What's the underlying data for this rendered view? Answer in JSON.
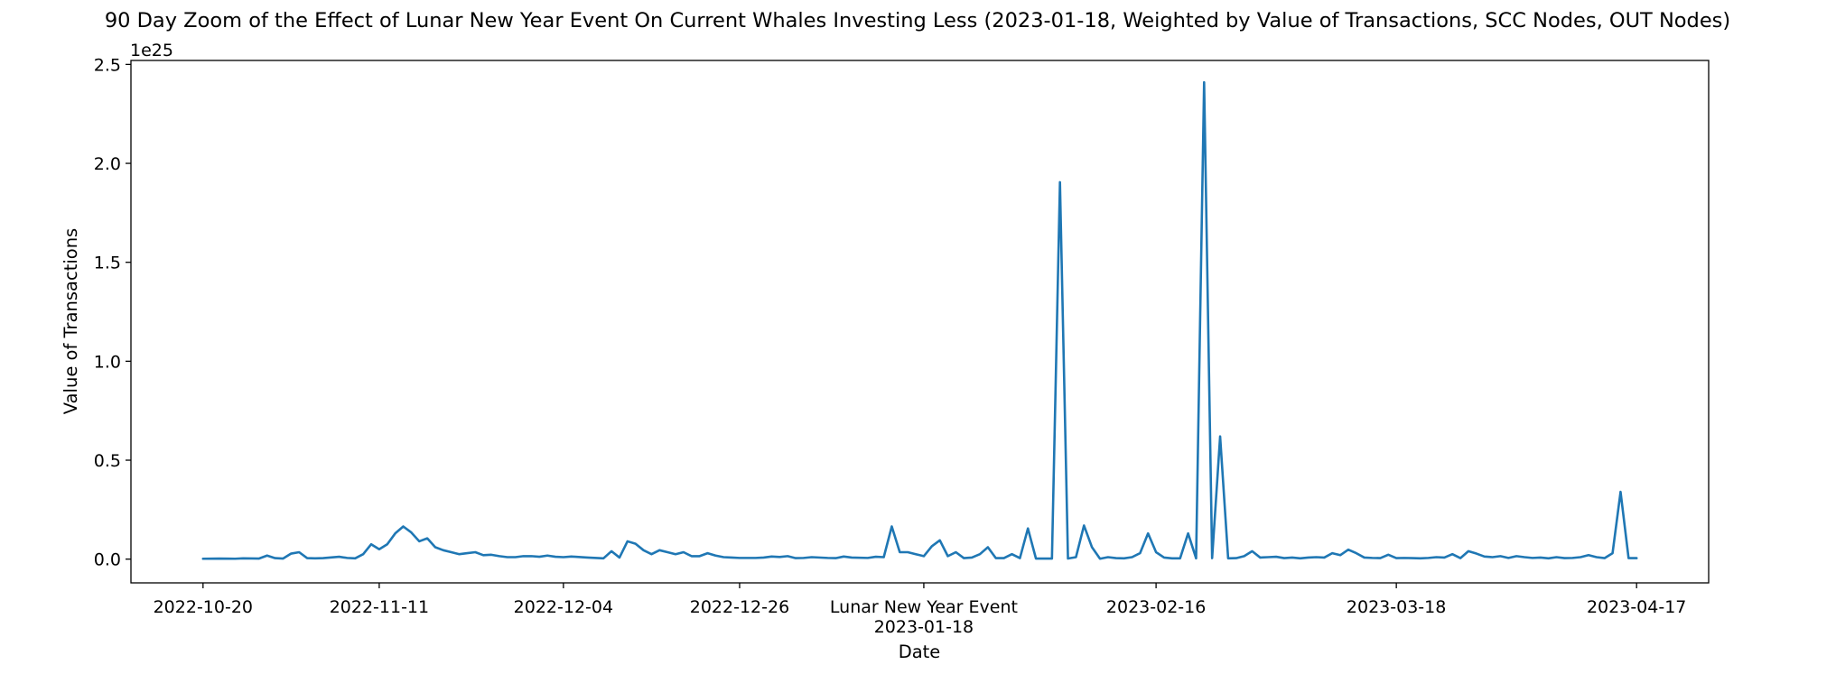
{
  "chart_data": {
    "type": "line",
    "title": "90 Day Zoom of the Effect of Lunar New Year Event On Current Whales Investing Less (2023-01-18, Weighted by Value of Transactions, SCC Nodes, OUT Nodes)",
    "xlabel": "Date",
    "ylabel": "Value of Transactions",
    "y_offset_label": "1e25",
    "y_scale": 1e+25,
    "xlim": [
      "2022-10-11",
      "2023-04-26"
    ],
    "ylim": [
      -0.12,
      2.52
    ],
    "x_ticks": [
      {
        "date": "2022-10-20",
        "label": "2022-10-20"
      },
      {
        "date": "2022-11-11",
        "label": "2022-11-11"
      },
      {
        "date": "2022-12-04",
        "label": "2022-12-04"
      },
      {
        "date": "2022-12-26",
        "label": "2022-12-26"
      },
      {
        "date": "2023-01-18",
        "label": "2023-01-18",
        "annotation": "Lunar New Year Event"
      },
      {
        "date": "2023-02-16",
        "label": "2023-02-16"
      },
      {
        "date": "2023-03-18",
        "label": "2023-03-18"
      },
      {
        "date": "2023-04-17",
        "label": "2023-04-17"
      }
    ],
    "y_ticks": [
      0.0,
      0.5,
      1.0,
      1.5,
      2.0,
      2.5
    ],
    "y_tick_labels": [
      "0.0",
      "0.5",
      "1.0",
      "1.5",
      "2.0",
      "2.5"
    ],
    "grid": false,
    "legend": "none",
    "series": [
      {
        "color": "#1f77b4",
        "points": [
          [
            "2022-10-20",
            0.002
          ],
          [
            "2022-10-22",
            0.003
          ],
          [
            "2022-10-24",
            0.002
          ],
          [
            "2022-10-25",
            0.004
          ],
          [
            "2022-10-27",
            0.003
          ],
          [
            "2022-10-28",
            0.018
          ],
          [
            "2022-10-29",
            0.005
          ],
          [
            "2022-10-30",
            0.003
          ],
          [
            "2022-10-31",
            0.028
          ],
          [
            "2022-11-01",
            0.035
          ],
          [
            "2022-11-02",
            0.005
          ],
          [
            "2022-11-03",
            0.004
          ],
          [
            "2022-11-04",
            0.005
          ],
          [
            "2022-11-06",
            0.012
          ],
          [
            "2022-11-07",
            0.006
          ],
          [
            "2022-11-08",
            0.004
          ],
          [
            "2022-11-09",
            0.025
          ],
          [
            "2022-11-10",
            0.075
          ],
          [
            "2022-11-11",
            0.05
          ],
          [
            "2022-11-12",
            0.075
          ],
          [
            "2022-11-13",
            0.13
          ],
          [
            "2022-11-14",
            0.165
          ],
          [
            "2022-11-15",
            0.135
          ],
          [
            "2022-11-16",
            0.09
          ],
          [
            "2022-11-17",
            0.105
          ],
          [
            "2022-11-18",
            0.06
          ],
          [
            "2022-11-19",
            0.045
          ],
          [
            "2022-11-20",
            0.035
          ],
          [
            "2022-11-21",
            0.025
          ],
          [
            "2022-11-22",
            0.03
          ],
          [
            "2022-11-23",
            0.035
          ],
          [
            "2022-11-24",
            0.02
          ],
          [
            "2022-11-25",
            0.022
          ],
          [
            "2022-11-26",
            0.015
          ],
          [
            "2022-11-27",
            0.01
          ],
          [
            "2022-11-28",
            0.01
          ],
          [
            "2022-11-29",
            0.015
          ],
          [
            "2022-11-30",
            0.015
          ],
          [
            "2022-12-01",
            0.012
          ],
          [
            "2022-12-02",
            0.018
          ],
          [
            "2022-12-03",
            0.012
          ],
          [
            "2022-12-04",
            0.01
          ],
          [
            "2022-12-05",
            0.013
          ],
          [
            "2022-12-07",
            0.008
          ],
          [
            "2022-12-09",
            0.004
          ],
          [
            "2022-12-10",
            0.04
          ],
          [
            "2022-12-11",
            0.008
          ],
          [
            "2022-12-12",
            0.09
          ],
          [
            "2022-12-13",
            0.078
          ],
          [
            "2022-12-14",
            0.045
          ],
          [
            "2022-12-15",
            0.025
          ],
          [
            "2022-12-16",
            0.045
          ],
          [
            "2022-12-17",
            0.035
          ],
          [
            "2022-12-18",
            0.025
          ],
          [
            "2022-12-19",
            0.035
          ],
          [
            "2022-12-20",
            0.015
          ],
          [
            "2022-12-21",
            0.015
          ],
          [
            "2022-12-22",
            0.03
          ],
          [
            "2022-12-23",
            0.018
          ],
          [
            "2022-12-24",
            0.01
          ],
          [
            "2022-12-25",
            0.008
          ],
          [
            "2022-12-26",
            0.006
          ],
          [
            "2022-12-28",
            0.006
          ],
          [
            "2022-12-29",
            0.008
          ],
          [
            "2022-12-30",
            0.013
          ],
          [
            "2022-12-31",
            0.011
          ],
          [
            "2023-01-01",
            0.015
          ],
          [
            "2023-01-02",
            0.005
          ],
          [
            "2023-01-03",
            0.006
          ],
          [
            "2023-01-04",
            0.01
          ],
          [
            "2023-01-06",
            0.006
          ],
          [
            "2023-01-07",
            0.005
          ],
          [
            "2023-01-08",
            0.013
          ],
          [
            "2023-01-09",
            0.008
          ],
          [
            "2023-01-11",
            0.006
          ],
          [
            "2023-01-12",
            0.012
          ],
          [
            "2023-01-13",
            0.01
          ],
          [
            "2023-01-14",
            0.165
          ],
          [
            "2023-01-15",
            0.035
          ],
          [
            "2023-01-16",
            0.035
          ],
          [
            "2023-01-17",
            0.025
          ],
          [
            "2023-01-18",
            0.015
          ],
          [
            "2023-01-19",
            0.065
          ],
          [
            "2023-01-20",
            0.095
          ],
          [
            "2023-01-21",
            0.015
          ],
          [
            "2023-01-22",
            0.035
          ],
          [
            "2023-01-23",
            0.005
          ],
          [
            "2023-01-24",
            0.008
          ],
          [
            "2023-01-25",
            0.025
          ],
          [
            "2023-01-26",
            0.06
          ],
          [
            "2023-01-27",
            0.005
          ],
          [
            "2023-01-28",
            0.005
          ],
          [
            "2023-01-29",
            0.025
          ],
          [
            "2023-01-30",
            0.005
          ],
          [
            "2023-01-31",
            0.155
          ],
          [
            "2023-02-01",
            0.003
          ],
          [
            "2023-02-02",
            0.003
          ],
          [
            "2023-02-03",
            0.003
          ],
          [
            "2023-02-04",
            1.905
          ],
          [
            "2023-02-05",
            0.003
          ],
          [
            "2023-02-06",
            0.01
          ],
          [
            "2023-02-07",
            0.17
          ],
          [
            "2023-02-08",
            0.06
          ],
          [
            "2023-02-09",
            0.002
          ],
          [
            "2023-02-10",
            0.01
          ],
          [
            "2023-02-11",
            0.005
          ],
          [
            "2023-02-12",
            0.004
          ],
          [
            "2023-02-13",
            0.01
          ],
          [
            "2023-02-14",
            0.03
          ],
          [
            "2023-02-15",
            0.13
          ],
          [
            "2023-02-16",
            0.035
          ],
          [
            "2023-02-17",
            0.008
          ],
          [
            "2023-02-18",
            0.004
          ],
          [
            "2023-02-19",
            0.004
          ],
          [
            "2023-02-20",
            0.13
          ],
          [
            "2023-02-21",
            0.004
          ],
          [
            "2023-02-22",
            2.41
          ],
          [
            "2023-02-23",
            0.005
          ],
          [
            "2023-02-24",
            0.62
          ],
          [
            "2023-02-25",
            0.004
          ],
          [
            "2023-02-26",
            0.005
          ],
          [
            "2023-02-27",
            0.015
          ],
          [
            "2023-02-28",
            0.04
          ],
          [
            "2023-03-01",
            0.008
          ],
          [
            "2023-03-02",
            0.01
          ],
          [
            "2023-03-03",
            0.012
          ],
          [
            "2023-03-04",
            0.005
          ],
          [
            "2023-03-05",
            0.008
          ],
          [
            "2023-03-06",
            0.004
          ],
          [
            "2023-03-07",
            0.008
          ],
          [
            "2023-03-08",
            0.01
          ],
          [
            "2023-03-09",
            0.008
          ],
          [
            "2023-03-10",
            0.03
          ],
          [
            "2023-03-11",
            0.02
          ],
          [
            "2023-03-12",
            0.048
          ],
          [
            "2023-03-13",
            0.03
          ],
          [
            "2023-03-14",
            0.008
          ],
          [
            "2023-03-15",
            0.006
          ],
          [
            "2023-03-16",
            0.005
          ],
          [
            "2023-03-17",
            0.022
          ],
          [
            "2023-03-18",
            0.005
          ],
          [
            "2023-03-19",
            0.006
          ],
          [
            "2023-03-20",
            0.005
          ],
          [
            "2023-03-21",
            0.004
          ],
          [
            "2023-03-22",
            0.006
          ],
          [
            "2023-03-23",
            0.01
          ],
          [
            "2023-03-24",
            0.008
          ],
          [
            "2023-03-25",
            0.025
          ],
          [
            "2023-03-26",
            0.005
          ],
          [
            "2023-03-27",
            0.04
          ],
          [
            "2023-03-28",
            0.028
          ],
          [
            "2023-03-29",
            0.013
          ],
          [
            "2023-03-30",
            0.01
          ],
          [
            "2023-03-31",
            0.015
          ],
          [
            "2023-04-01",
            0.006
          ],
          [
            "2023-04-02",
            0.015
          ],
          [
            "2023-04-03",
            0.01
          ],
          [
            "2023-04-04",
            0.006
          ],
          [
            "2023-04-05",
            0.008
          ],
          [
            "2023-04-06",
            0.004
          ],
          [
            "2023-04-07",
            0.01
          ],
          [
            "2023-04-08",
            0.005
          ],
          [
            "2023-04-09",
            0.006
          ],
          [
            "2023-04-10",
            0.01
          ],
          [
            "2023-04-11",
            0.02
          ],
          [
            "2023-04-12",
            0.01
          ],
          [
            "2023-04-13",
            0.005
          ],
          [
            "2023-04-14",
            0.03
          ],
          [
            "2023-04-15",
            0.34
          ],
          [
            "2023-04-16",
            0.005
          ],
          [
            "2023-04-17",
            0.005
          ]
        ]
      }
    ]
  }
}
